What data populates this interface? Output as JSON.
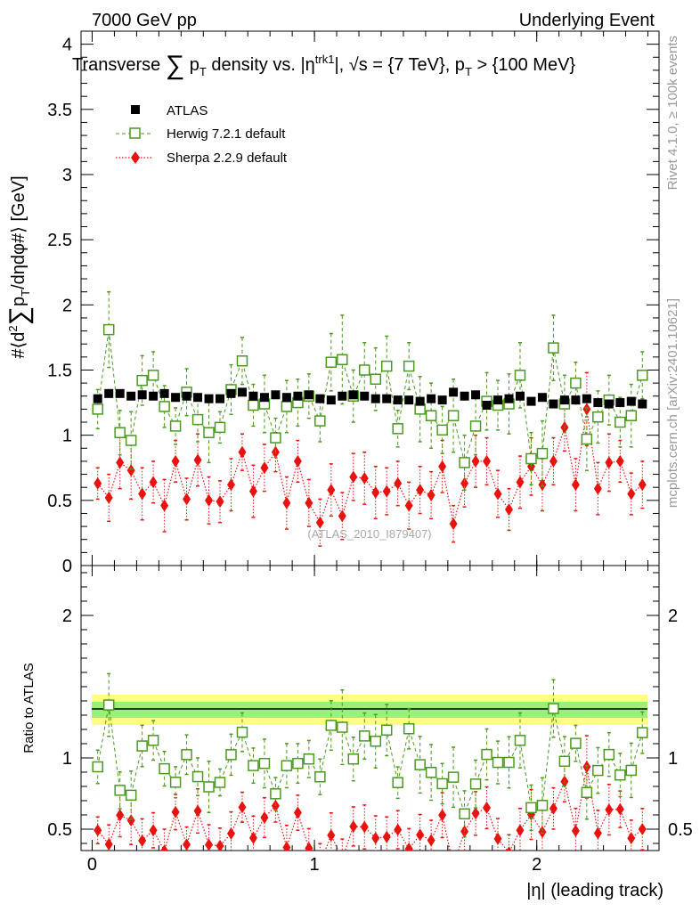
{
  "header": {
    "left": "7000 GeV pp",
    "right": "Underlying Event",
    "side_top": "Rivet 4.1.0, ≥ 100k events",
    "side_bottom": "mcplots.cern.ch [arXiv:2401.10621]",
    "watermark": "(ATLAS_2010_I879407)"
  },
  "chart_data": {
    "type": "scatter",
    "title": "Transverse ∑ pT density vs. |ηtrk1|, √s = {7 TeV}, pT > {100 MeV}",
    "title_parts": {
      "a": "Transverse ",
      "b": "∑",
      "c": " p",
      "d": "T",
      "e": " density vs. |η",
      "f": "trk1",
      "g": "|, √s = {7 TeV}, p",
      "h": "T",
      "i": " > {100 MeV}"
    },
    "ylabel_parts": {
      "a": "#⟨d",
      "b": "2",
      "c": "∑",
      "d": "p",
      "e": "T",
      "f": "/dηdφ#⟩ [GeV]"
    },
    "xlabel": "|η| (leading track)",
    "ratio_ylabel": "Ratio to ATLAS",
    "xlim": [
      -0.05,
      2.55
    ],
    "ylim": [
      0,
      4.1
    ],
    "ratio_ylim": [
      0.35,
      2.35
    ],
    "x_ticks": [
      {
        "v": 0,
        "label": "0"
      },
      {
        "v": 1,
        "label": "1"
      },
      {
        "v": 2,
        "label": "2"
      }
    ],
    "y_ticks": [
      {
        "v": 0,
        "label": "0"
      },
      {
        "v": 0.5,
        "label": "0.5"
      },
      {
        "v": 1,
        "label": "1"
      },
      {
        "v": 1.5,
        "label": "1.5"
      },
      {
        "v": 2,
        "label": "2"
      },
      {
        "v": 2.5,
        "label": "2.5"
      },
      {
        "v": 3,
        "label": "3"
      },
      {
        "v": 3.5,
        "label": "3.5"
      },
      {
        "v": 4,
        "label": "4"
      }
    ],
    "ratio_ticks": [
      {
        "v": 0.5,
        "label": "0.5"
      },
      {
        "v": 1,
        "label": "1"
      },
      {
        "v": 2,
        "label": "2"
      }
    ],
    "x": [
      0.025,
      0.075,
      0.125,
      0.175,
      0.225,
      0.275,
      0.325,
      0.375,
      0.425,
      0.475,
      0.525,
      0.575,
      0.625,
      0.675,
      0.725,
      0.775,
      0.825,
      0.875,
      0.925,
      0.975,
      1.025,
      1.075,
      1.125,
      1.175,
      1.225,
      1.275,
      1.325,
      1.375,
      1.425,
      1.475,
      1.525,
      1.575,
      1.625,
      1.675,
      1.725,
      1.775,
      1.825,
      1.875,
      1.925,
      1.975,
      2.025,
      2.075,
      2.125,
      2.175,
      2.225,
      2.275,
      2.325,
      2.375,
      2.425,
      2.475
    ],
    "series": [
      {
        "name": "ATLAS",
        "color": "#000000",
        "values": [
          1.28,
          1.32,
          1.32,
          1.3,
          1.31,
          1.3,
          1.32,
          1.29,
          1.3,
          1.29,
          1.28,
          1.28,
          1.32,
          1.33,
          1.3,
          1.29,
          1.31,
          1.29,
          1.3,
          1.31,
          1.28,
          1.27,
          1.3,
          1.31,
          1.3,
          1.28,
          1.28,
          1.27,
          1.27,
          1.26,
          1.28,
          1.27,
          1.33,
          1.3,
          1.31,
          1.23,
          1.27,
          1.28,
          1.3,
          1.26,
          1.29,
          1.24,
          1.27,
          1.27,
          1.28,
          1.25,
          1.24,
          1.25,
          1.26,
          1.24
        ]
      },
      {
        "name": "Herwig 7.2.1 default",
        "color": "#4a9a1e",
        "values": [
          1.2,
          1.81,
          1.02,
          0.96,
          1.42,
          1.46,
          1.22,
          1.07,
          1.33,
          1.12,
          1.02,
          1.06,
          1.35,
          1.57,
          1.23,
          1.24,
          0.98,
          1.22,
          1.25,
          1.3,
          1.11,
          1.56,
          1.58,
          1.3,
          1.5,
          1.43,
          1.53,
          1.05,
          1.53,
          1.2,
          1.15,
          1.04,
          1.15,
          0.79,
          1.07,
          1.26,
          1.23,
          1.24,
          1.46,
          0.82,
          0.86,
          1.67,
          1.24,
          1.4,
          0.97,
          1.14,
          1.27,
          1.1,
          1.15,
          1.46
        ],
        "errors": [
          0.15,
          0.29,
          0.17,
          0.22,
          0.19,
          0.18,
          0.16,
          0.14,
          0.18,
          0.17,
          0.23,
          0.12,
          0.19,
          0.18,
          0.16,
          0.22,
          0.15,
          0.2,
          0.18,
          0.17,
          0.16,
          0.22,
          0.34,
          0.2,
          0.21,
          0.24,
          0.23,
          0.14,
          0.18,
          0.25,
          0.25,
          0.18,
          0.28,
          0.21,
          0.22,
          0.22,
          0.19,
          0.23,
          0.25,
          0.2,
          0.25,
          0.25,
          0.22,
          0.16,
          0.24,
          0.2,
          0.19,
          0.19,
          0.24,
          0.18
        ]
      },
      {
        "name": "Sherpa 2.2.9 default",
        "color": "#e8120e",
        "values": [
          0.63,
          0.52,
          0.79,
          0.73,
          0.55,
          0.64,
          0.46,
          0.8,
          0.51,
          0.81,
          0.5,
          0.49,
          0.62,
          0.87,
          0.57,
          0.75,
          0.87,
          0.48,
          0.8,
          0.48,
          0.33,
          0.58,
          0.38,
          0.68,
          0.67,
          0.56,
          0.57,
          0.63,
          0.46,
          0.58,
          0.54,
          0.76,
          0.32,
          0.63,
          0.8,
          0.8,
          0.55,
          0.43,
          0.64,
          0.76,
          0.62,
          0.8,
          1.06,
          0.62,
          1.2,
          0.59,
          0.79,
          0.8,
          0.55,
          0.62
        ],
        "errors": [
          0.12,
          0.18,
          0.2,
          0.22,
          0.2,
          0.16,
          0.2,
          0.16,
          0.16,
          0.2,
          0.18,
          0.16,
          0.2,
          0.14,
          0.2,
          0.18,
          0.15,
          0.2,
          0.16,
          0.18,
          0.18,
          0.2,
          0.18,
          0.18,
          0.2,
          0.2,
          0.18,
          0.17,
          0.18,
          0.18,
          0.18,
          0.2,
          0.14,
          0.18,
          0.2,
          0.18,
          0.18,
          0.16,
          0.2,
          0.22,
          0.2,
          0.18,
          0.18,
          0.2,
          0.28,
          0.2,
          0.22,
          0.16,
          0.16,
          0.18
        ]
      }
    ],
    "legend_position": "top-left"
  }
}
